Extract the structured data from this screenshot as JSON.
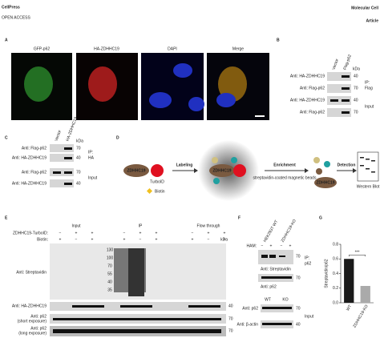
{
  "header": {
    "publisher": "CellPress",
    "access": "OPEN ACCESS",
    "journal": "Molecular Cell",
    "article_type": "Article"
  },
  "panel_a": {
    "letter": "A",
    "channels": [
      "GFP-p62",
      "HA-ZDHHC19",
      "DAPI",
      "Merge"
    ]
  },
  "panel_b": {
    "letter": "B",
    "lanes": [
      "Vector",
      "Flag-p62"
    ],
    "kda": "kDa",
    "rows": [
      "Anti: HA-ZDHHC19",
      "Anti: Flag-p62",
      "Anti: HA-ZDHHC19",
      "Anti: Flag-p62"
    ],
    "markers": [
      "40",
      "70",
      "40",
      "70"
    ],
    "group_ip": [
      "IP:",
      "Flag"
    ],
    "group_input": "Input"
  },
  "panel_c": {
    "letter": "C",
    "lanes": [
      "Vector",
      "HA-ZDHHC19"
    ],
    "kda": "kDa",
    "rows": [
      "Anti: Flag-p62",
      "Anti: HA-ZDHHC19",
      "Anti: Flag-p62",
      "Anti: HA-ZDHHC19"
    ],
    "markers": [
      "70",
      "40",
      "70",
      "40"
    ],
    "group_ip": [
      "IP:",
      "HA"
    ],
    "group_input": "Input"
  },
  "panel_d": {
    "letter": "D",
    "bait": "ZDHHC19",
    "turbo": "TurboID",
    "biotin": "Biotin",
    "labeling": "Labeling",
    "bait_labeled": "ZDHHC19",
    "enrichment": "Enrichment",
    "beads": "streptavidin-coated magnetic beads",
    "bait_enriched": "ZDHHC19",
    "detection": "Detection",
    "western": "Western Blot"
  },
  "panel_e": {
    "letter": "E",
    "groups": [
      "Input",
      "IP",
      "Flow through"
    ],
    "conditions": [
      "ZDHHC19-TurboID:",
      "Biotin:"
    ],
    "signs": [
      [
        "−",
        "+",
        "+",
        "−",
        "+",
        "+",
        "−",
        "+",
        "+"
      ],
      [
        "+",
        "−",
        "+",
        "+",
        "−",
        "+",
        "+",
        "−",
        "+"
      ]
    ],
    "kda": "kDa",
    "ladder": [
      "130",
      "100",
      "70",
      "55",
      "40",
      "35"
    ],
    "rows": [
      "Anti: Streptavidin",
      "Anti: HA-ZDHHC19",
      "Anti: p62",
      "(short exposure)",
      "Anti: p62",
      "(long exposure)"
    ],
    "row_markers": [
      "40",
      "70",
      "70"
    ]
  },
  "panel_f": {
    "letter": "F",
    "lanes": [
      "HEK293T WT",
      "ZDHHC19-KO"
    ],
    "ham": "HAM:",
    "signs": [
      "−",
      "+",
      "−",
      "+"
    ],
    "ip_rows": [
      "Anti: Streptavidin",
      "Anti: p62"
    ],
    "group_ip": [
      "IP:",
      "p62"
    ],
    "genotypes": [
      "WT",
      "KO"
    ],
    "input_rows": [
      "Anti: p62",
      "Anti: β-actin"
    ],
    "group_input": "Input",
    "markers": [
      "70",
      "70",
      "70",
      "40"
    ]
  },
  "chart_data": {
    "type": "bar",
    "letter": "G",
    "y_label": "Streptavidin/p62",
    "categories": [
      "WT",
      "ZDHHC19-KO"
    ],
    "values": [
      0.6,
      0.23
    ],
    "colors": [
      "#1a1a1a",
      "#aaaaaa"
    ],
    "ylim": [
      0,
      0.8
    ],
    "yticks": [
      {
        "value": 0,
        "label": "0.0"
      },
      0.2,
      0.4,
      0.6,
      0.8
    ],
    "annotation": "***"
  }
}
